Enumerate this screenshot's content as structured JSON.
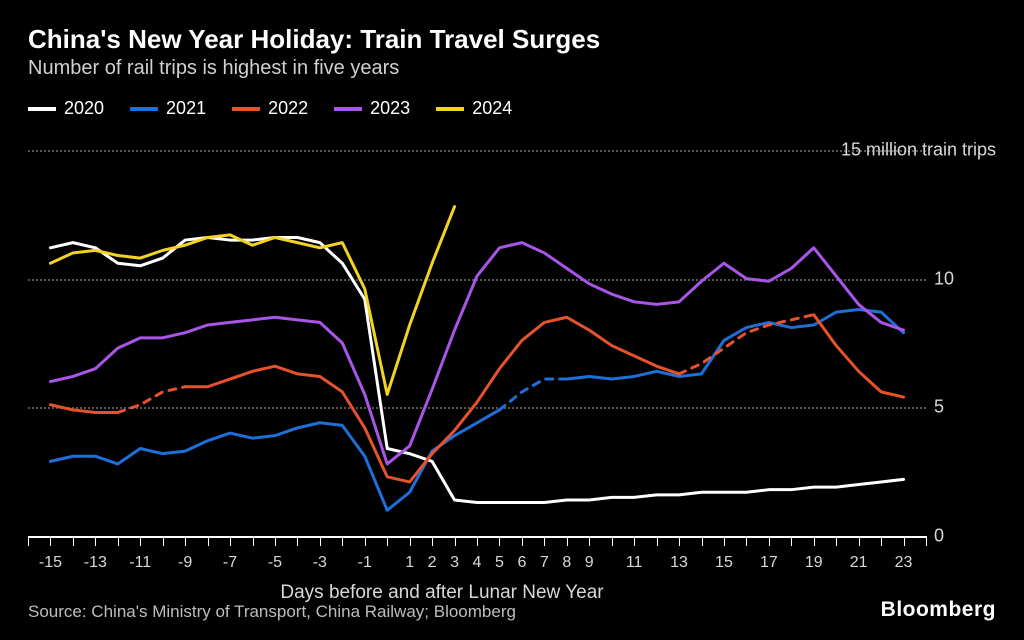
{
  "title": "China's New Year Holiday: Train Travel Surges",
  "subtitle": "Number of rail trips is highest in five years",
  "source": "Source: China's Ministry of Transport, China Railway; Bloomberg",
  "logo": "Bloomberg",
  "legend": [
    {
      "label": "2020",
      "color": "#ffffff"
    },
    {
      "label": "2021",
      "color": "#1f6fd9"
    },
    {
      "label": "2022",
      "color": "#e5522b"
    },
    {
      "label": "2023",
      "color": "#a855e8"
    },
    {
      "label": "2024",
      "color": "#f2d324"
    }
  ],
  "chart": {
    "type": "line",
    "background_color": "#000000",
    "grid_color": "#555555",
    "text_color": "#d8d8d8",
    "axis_color": "#ffffff",
    "line_width": 3,
    "xlim": [
      -16,
      24
    ],
    "ylim": [
      0,
      15
    ],
    "x_ticks_major": [
      -15,
      -13,
      -11,
      -9,
      -7,
      -5,
      -3,
      -1,
      1,
      2,
      3,
      4,
      5,
      6,
      7,
      8,
      9,
      11,
      13,
      15,
      17,
      19,
      21,
      23
    ],
    "x_grid_every_unit": true,
    "x_axis_title": "Days before and after Lunar New Year",
    "y_ticks": [
      {
        "value": 15,
        "label": "15 million train trips",
        "is_title": true
      },
      {
        "value": 10,
        "label": "10"
      },
      {
        "value": 5,
        "label": "5"
      },
      {
        "value": 0,
        "label": "0"
      }
    ],
    "series": [
      {
        "name": "2020",
        "color": "#ffffff",
        "dash": false,
        "points": [
          [
            -15,
            11.2
          ],
          [
            -14,
            11.4
          ],
          [
            -13,
            11.2
          ],
          [
            -12,
            10.6
          ],
          [
            -11,
            10.5
          ],
          [
            -10,
            10.8
          ],
          [
            -9,
            11.5
          ],
          [
            -8,
            11.6
          ],
          [
            -7,
            11.5
          ],
          [
            -6,
            11.5
          ],
          [
            -5,
            11.6
          ],
          [
            -4,
            11.6
          ],
          [
            -3,
            11.4
          ],
          [
            -2,
            10.6
          ],
          [
            -1,
            9.2
          ],
          [
            0,
            3.4
          ],
          [
            1,
            3.2
          ],
          [
            2,
            2.9
          ],
          [
            3,
            1.4
          ],
          [
            4,
            1.3
          ],
          [
            5,
            1.3
          ],
          [
            6,
            1.3
          ],
          [
            7,
            1.3
          ],
          [
            8,
            1.4
          ],
          [
            9,
            1.4
          ],
          [
            10,
            1.5
          ],
          [
            11,
            1.5
          ],
          [
            12,
            1.6
          ],
          [
            13,
            1.6
          ],
          [
            14,
            1.7
          ],
          [
            15,
            1.7
          ],
          [
            16,
            1.7
          ],
          [
            17,
            1.8
          ],
          [
            18,
            1.8
          ],
          [
            19,
            1.9
          ],
          [
            20,
            1.9
          ],
          [
            21,
            2.0
          ],
          [
            22,
            2.1
          ],
          [
            23,
            2.2
          ]
        ]
      },
      {
        "name": "2021",
        "color": "#1f6fd9",
        "segments": [
          {
            "dash": false,
            "points": [
              [
                -15,
                2.9
              ],
              [
                -14,
                3.1
              ],
              [
                -13,
                3.1
              ],
              [
                -12,
                2.8
              ],
              [
                -11,
                3.4
              ],
              [
                -10,
                3.2
              ],
              [
                -9,
                3.3
              ],
              [
                -8,
                3.7
              ],
              [
                -7,
                4.0
              ],
              [
                -6,
                3.8
              ],
              [
                -5,
                3.9
              ],
              [
                -4,
                4.2
              ],
              [
                -3,
                4.4
              ],
              [
                -2,
                4.3
              ],
              [
                -1,
                3.1
              ],
              [
                0,
                1.0
              ],
              [
                1,
                1.7
              ],
              [
                2,
                3.3
              ],
              [
                3,
                3.9
              ],
              [
                4,
                4.4
              ],
              [
                5,
                4.9
              ]
            ]
          },
          {
            "dash": true,
            "points": [
              [
                5,
                4.9
              ],
              [
                6,
                5.6
              ],
              [
                7,
                6.1
              ],
              [
                8,
                6.1
              ]
            ]
          },
          {
            "dash": false,
            "points": [
              [
                8,
                6.1
              ],
              [
                9,
                6.2
              ],
              [
                10,
                6.1
              ],
              [
                11,
                6.2
              ],
              [
                12,
                6.4
              ],
              [
                13,
                6.2
              ],
              [
                14,
                6.3
              ],
              [
                15,
                7.6
              ],
              [
                16,
                8.1
              ],
              [
                17,
                8.3
              ],
              [
                18,
                8.1
              ],
              [
                19,
                8.2
              ],
              [
                20,
                8.7
              ],
              [
                21,
                8.8
              ],
              [
                22,
                8.7
              ],
              [
                23,
                7.9
              ]
            ]
          }
        ]
      },
      {
        "name": "2022",
        "color": "#e5522b",
        "segments": [
          {
            "dash": false,
            "points": [
              [
                -15,
                5.1
              ],
              [
                -14,
                4.9
              ],
              [
                -13,
                4.8
              ],
              [
                -12,
                4.8
              ]
            ]
          },
          {
            "dash": true,
            "points": [
              [
                -12,
                4.8
              ],
              [
                -11,
                5.1
              ],
              [
                -10,
                5.6
              ],
              [
                -9,
                5.8
              ]
            ]
          },
          {
            "dash": false,
            "points": [
              [
                -9,
                5.8
              ],
              [
                -8,
                5.8
              ],
              [
                -7,
                6.1
              ],
              [
                -6,
                6.4
              ],
              [
                -5,
                6.6
              ],
              [
                -4,
                6.3
              ],
              [
                -3,
                6.2
              ],
              [
                -2,
                5.6
              ],
              [
                -1,
                4.2
              ],
              [
                0,
                2.3
              ],
              [
                1,
                2.1
              ],
              [
                2,
                3.2
              ],
              [
                3,
                4.1
              ],
              [
                4,
                5.2
              ],
              [
                5,
                6.5
              ],
              [
                6,
                7.6
              ],
              [
                7,
                8.3
              ],
              [
                8,
                8.5
              ],
              [
                9,
                8.0
              ],
              [
                10,
                7.4
              ],
              [
                11,
                7.0
              ],
              [
                12,
                6.6
              ],
              [
                13,
                6.3
              ]
            ]
          },
          {
            "dash": true,
            "points": [
              [
                13,
                6.3
              ],
              [
                14,
                6.7
              ],
              [
                15,
                7.3
              ],
              [
                16,
                7.9
              ],
              [
                17,
                8.2
              ],
              [
                18,
                8.4
              ],
              [
                19,
                8.6
              ]
            ]
          },
          {
            "dash": false,
            "points": [
              [
                19,
                8.6
              ],
              [
                20,
                7.4
              ],
              [
                21,
                6.4
              ],
              [
                22,
                5.6
              ],
              [
                23,
                5.4
              ]
            ]
          }
        ]
      },
      {
        "name": "2023",
        "color": "#a855e8",
        "dash": false,
        "points": [
          [
            -15,
            6.0
          ],
          [
            -14,
            6.2
          ],
          [
            -13,
            6.5
          ],
          [
            -12,
            7.3
          ],
          [
            -11,
            7.7
          ],
          [
            -10,
            7.7
          ],
          [
            -9,
            7.9
          ],
          [
            -8,
            8.2
          ],
          [
            -7,
            8.3
          ],
          [
            -6,
            8.4
          ],
          [
            -5,
            8.5
          ],
          [
            -4,
            8.4
          ],
          [
            -3,
            8.3
          ],
          [
            -2,
            7.5
          ],
          [
            -1,
            5.5
          ],
          [
            0,
            2.8
          ],
          [
            1,
            3.5
          ],
          [
            2,
            5.7
          ],
          [
            3,
            8.0
          ],
          [
            4,
            10.1
          ],
          [
            5,
            11.2
          ],
          [
            6,
            11.4
          ],
          [
            7,
            11.0
          ],
          [
            8,
            10.4
          ],
          [
            9,
            9.8
          ],
          [
            10,
            9.4
          ],
          [
            11,
            9.1
          ],
          [
            12,
            9.0
          ],
          [
            13,
            9.1
          ],
          [
            14,
            9.9
          ],
          [
            15,
            10.6
          ],
          [
            16,
            10.0
          ],
          [
            17,
            9.9
          ],
          [
            18,
            10.4
          ],
          [
            19,
            11.2
          ],
          [
            20,
            10.1
          ],
          [
            21,
            9.0
          ],
          [
            22,
            8.3
          ],
          [
            23,
            8.0
          ]
        ]
      },
      {
        "name": "2024",
        "color": "#f2d324",
        "dash": false,
        "points": [
          [
            -15,
            10.6
          ],
          [
            -14,
            11.0
          ],
          [
            -13,
            11.1
          ],
          [
            -12,
            10.9
          ],
          [
            -11,
            10.8
          ],
          [
            -10,
            11.1
          ],
          [
            -9,
            11.3
          ],
          [
            -8,
            11.6
          ],
          [
            -7,
            11.7
          ],
          [
            -6,
            11.3
          ],
          [
            -5,
            11.6
          ],
          [
            -4,
            11.4
          ],
          [
            -3,
            11.2
          ],
          [
            -2,
            11.4
          ],
          [
            -1,
            9.6
          ],
          [
            0,
            5.5
          ],
          [
            1,
            8.2
          ],
          [
            2,
            10.6
          ],
          [
            3,
            12.8
          ]
        ]
      }
    ]
  }
}
